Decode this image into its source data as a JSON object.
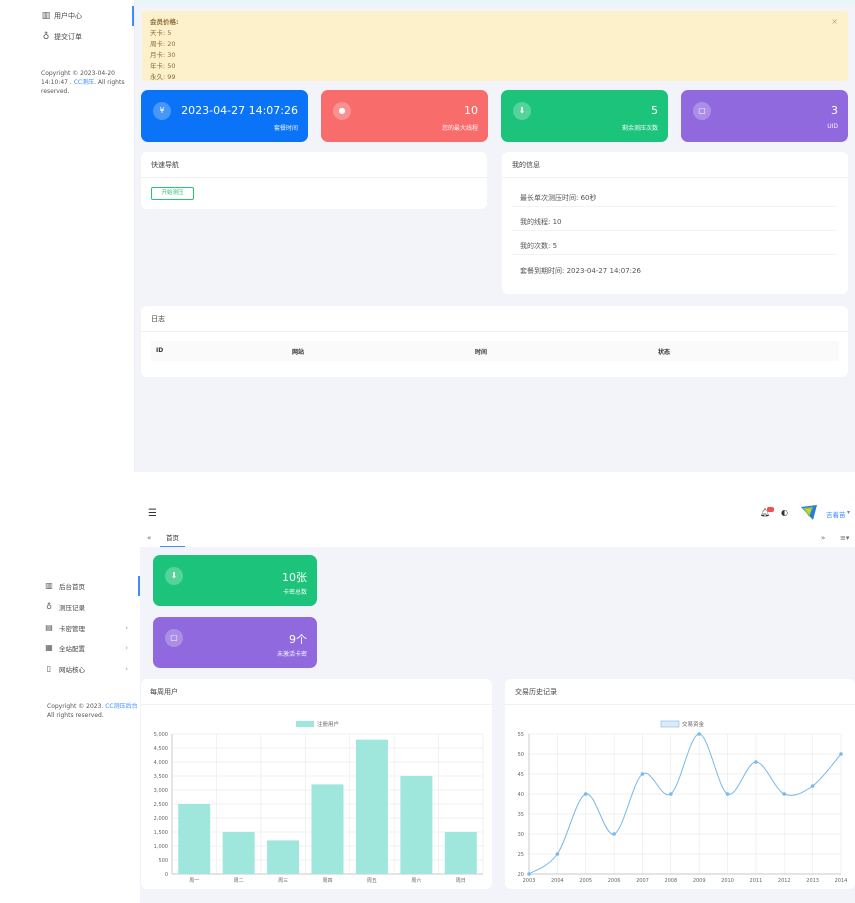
{
  "top": {
    "sidebar": {
      "items": [
        {
          "label": "用户中心",
          "icon": "bar-chart-icon"
        },
        {
          "label": "提交订单",
          "icon": "gift-icon"
        }
      ],
      "copyright_prefix": "Copyright © 2023-04-20 14:10:47 .",
      "copyright_link": "CC测压",
      "copyright_suffix": ". All rights reserved."
    },
    "alert": {
      "title": "会员价格:",
      "lines": [
        "天卡: 5",
        "周卡: 20",
        "月卡: 30",
        "年卡: 50",
        "永久: 99"
      ],
      "close": "×"
    },
    "stats": [
      {
        "value": "2023-04-27 14:07:26",
        "label": "套餐时间",
        "color": "#0a73f8",
        "icon": "yen-icon",
        "icon_glyph": "¥"
      },
      {
        "value": "10",
        "label": "您的最大线程",
        "color": "#f86c6b",
        "icon": "user-icon",
        "icon_glyph": "●"
      },
      {
        "value": "5",
        "label": "剩余测压次数",
        "color": "#1bc47a",
        "icon": "download-icon",
        "icon_glyph": "⬇"
      },
      {
        "value": "3",
        "label": "UID",
        "color": "#9069df",
        "icon": "chat-icon",
        "icon_glyph": "▢"
      }
    ],
    "quick_nav": {
      "title": "快速导航",
      "button": "开始测压"
    },
    "my_info": {
      "title": "我的信息",
      "rows": [
        "最长单次测压时间: 60秒",
        "我的线程: 10",
        "我的次数: 5",
        "套餐到期时间: 2023-04-27 14:07:26"
      ]
    },
    "log": {
      "title": "日志",
      "columns": [
        "ID",
        "网站",
        "时间",
        "状态"
      ]
    }
  },
  "bottom": {
    "header": {
      "menu_icon": "hamburger-icon",
      "username": "吉着苗",
      "tab": "首页",
      "home_icon": "home-icon"
    },
    "sidebar": {
      "items": [
        {
          "label": "后台首页",
          "icon": "bar-chart-icon",
          "has_arrow": false
        },
        {
          "label": "测压记录",
          "icon": "gift-icon",
          "has_arrow": false
        },
        {
          "label": "卡密管理",
          "icon": "card-icon",
          "has_arrow": true
        },
        {
          "label": "全站配置",
          "icon": "calendar-icon",
          "has_arrow": true
        },
        {
          "label": "网站核心",
          "icon": "file-icon",
          "has_arrow": true
        }
      ],
      "copyright_prefix": "Copyright © 2023.",
      "copyright_link": "CC测压后台",
      "copyright_suffix": "All rights reserved."
    },
    "stats": [
      {
        "value": "10张",
        "label": "卡密总数",
        "color": "#1bc47a",
        "icon": "download-icon",
        "icon_glyph": "⬇"
      },
      {
        "value": "9个",
        "label": "未激活卡密",
        "color": "#9069df",
        "icon": "chat-icon",
        "icon_glyph": "▢"
      }
    ]
  },
  "chart_data": [
    {
      "type": "bar",
      "title": "每周用户",
      "legend": "注册用户",
      "categories": [
        "周一",
        "周二",
        "周三",
        "周四",
        "周五",
        "周六",
        "周日"
      ],
      "values": [
        2500,
        1500,
        1200,
        3200,
        4800,
        3500,
        1500
      ],
      "ylim": [
        0,
        5000
      ],
      "yticks": [
        "0",
        "500",
        "1,000",
        "1,500",
        "2,000",
        "2,500",
        "3,000",
        "3,500",
        "4,000",
        "4,500",
        "5,000"
      ],
      "color": "#9fe6dd",
      "grid": true
    },
    {
      "type": "line",
      "title": "交易历史记录",
      "legend": "交易资金",
      "categories": [
        "2003",
        "2004",
        "2005",
        "2006",
        "2007",
        "2008",
        "2009",
        "2010",
        "2011",
        "2012",
        "2013",
        "2014"
      ],
      "values": [
        20,
        25,
        40,
        30,
        45,
        40,
        55,
        40,
        48,
        40,
        42,
        50
      ],
      "ylim": [
        20,
        55
      ],
      "yticks": [
        "20",
        "25",
        "30",
        "35",
        "40",
        "45",
        "50",
        "55"
      ],
      "color": "#7ab8e8",
      "grid": true
    }
  ]
}
